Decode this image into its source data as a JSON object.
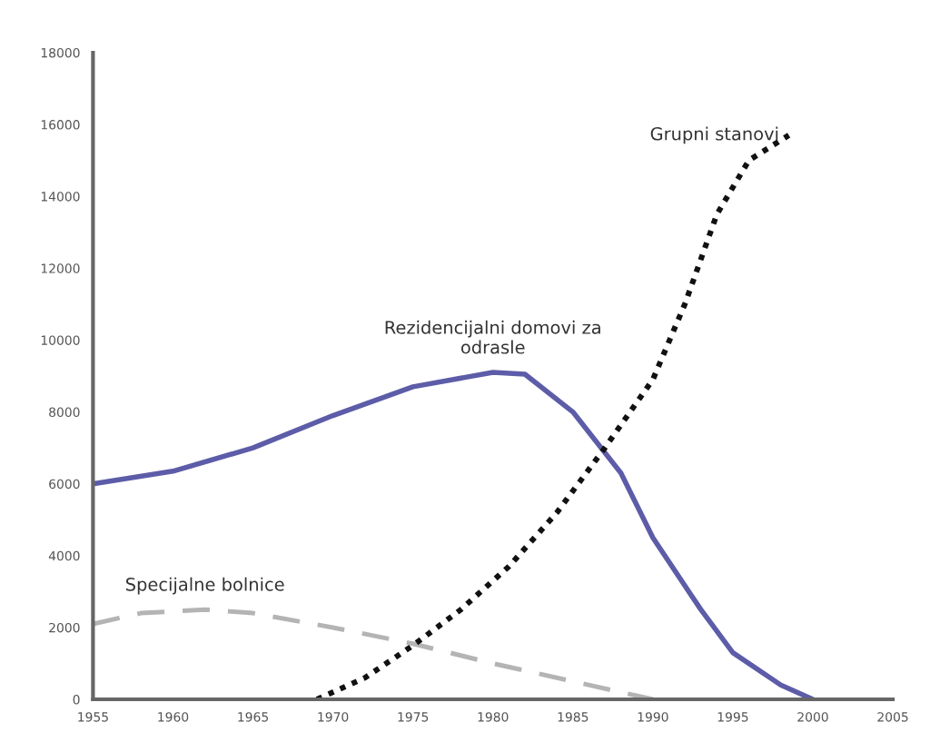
{
  "chart_data": {
    "type": "line",
    "xlim": [
      1955,
      2005
    ],
    "ylim": [
      0,
      18000
    ],
    "xticks": [
      1955,
      1960,
      1965,
      1970,
      1975,
      1980,
      1985,
      1990,
      1995,
      2000,
      2005
    ],
    "yticks": [
      0,
      2000,
      4000,
      6000,
      8000,
      10000,
      12000,
      14000,
      16000,
      18000
    ],
    "grid": false,
    "marker": "none",
    "series": [
      {
        "name": "Rezidencijalni domovi za\nodrasle",
        "color": "#5c5ca8",
        "line_style": "solid",
        "x": [
          1955,
          1960,
          1965,
          1970,
          1975,
          1980,
          1982,
          1985,
          1988,
          1990,
          1993,
          1995,
          1998,
          2000
        ],
        "values": [
          6000,
          6350,
          7000,
          7900,
          8700,
          9100,
          9050,
          8000,
          6300,
          4500,
          2500,
          1300,
          400,
          0
        ]
      },
      {
        "name": "Specijalne bolnice",
        "color": "#b4b4b4",
        "line_style": "dashed",
        "x": [
          1955,
          1958,
          1962,
          1965,
          1970,
          1975,
          1980,
          1985,
          1990
        ],
        "values": [
          2100,
          2400,
          2500,
          2400,
          2000,
          1550,
          1000,
          500,
          0
        ]
      },
      {
        "name": "Grupni stanovi",
        "color": "#111111",
        "line_style": "dotted",
        "x": [
          1969,
          1972,
          1975,
          1978,
          1981,
          1984,
          1987,
          1990,
          1992,
          1994,
          1996,
          1998.5
        ],
        "values": [
          0,
          600,
          1500,
          2500,
          3700,
          5200,
          7000,
          8900,
          11000,
          13500,
          15000,
          15700
        ]
      }
    ]
  }
}
